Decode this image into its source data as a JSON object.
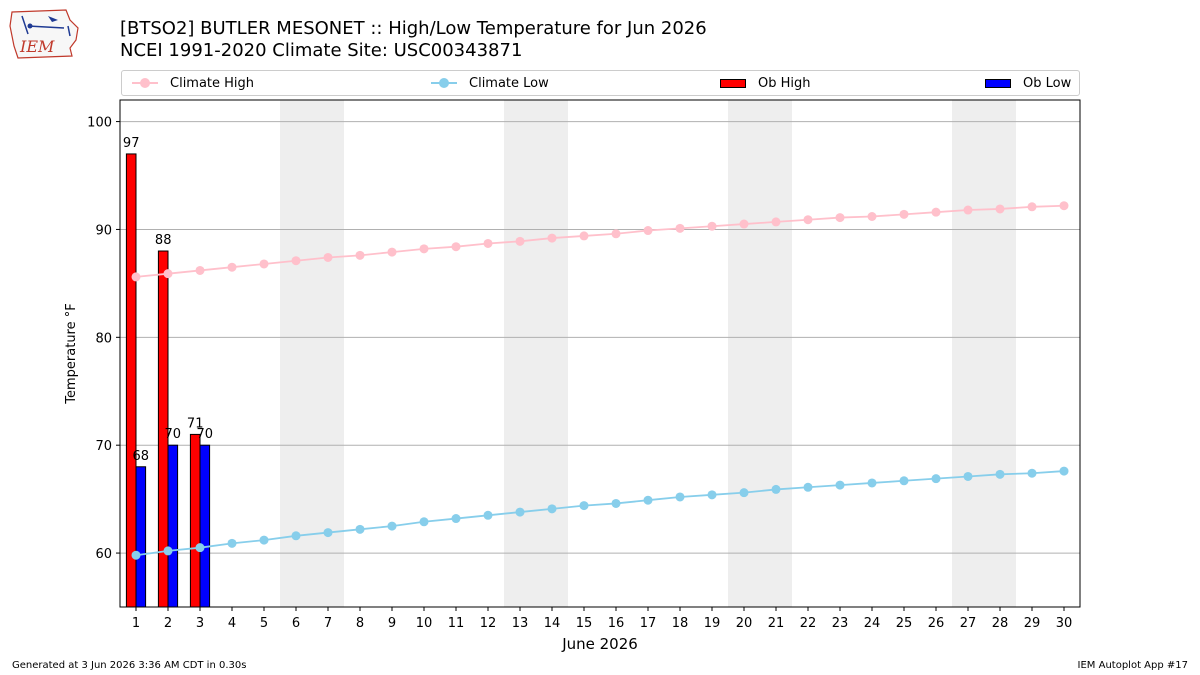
{
  "header": {
    "title": "[BTSO2] BUTLER MESONET :: High/Low Temperature for Jun 2026",
    "subtitle": "NCEI 1991-2020 Climate Site: USC00343871"
  },
  "logo": {
    "text": "IEM",
    "icon": "iem-logo-iowa-map"
  },
  "footer": {
    "generated": "Generated at 3 Jun 2026 3:36 AM CDT in 0.30s",
    "app": "IEM Autoplot App #17"
  },
  "colors": {
    "climate_high": "#ffc0cb",
    "climate_low": "#87ceeb",
    "ob_high": "#ff0000",
    "ob_low": "#0000ff",
    "weekend_shade": "#eeeeee",
    "grid": "#b0b0b0"
  },
  "chart_data": {
    "type": "bar",
    "xlabel": "June 2026",
    "ylabel": "Temperature °F",
    "xlim": [
      0.5,
      30.5
    ],
    "ylim": [
      55,
      102
    ],
    "x_ticks": [
      1,
      2,
      3,
      4,
      5,
      6,
      7,
      8,
      9,
      10,
      11,
      12,
      13,
      14,
      15,
      16,
      17,
      18,
      19,
      20,
      21,
      22,
      23,
      24,
      25,
      26,
      27,
      28,
      29,
      30
    ],
    "y_ticks": [
      60,
      70,
      80,
      90,
      100
    ],
    "grid": "horizontal",
    "legend_position": "top",
    "weekend_shaded_days": [
      [
        6,
        7
      ],
      [
        13,
        14
      ],
      [
        20,
        21
      ],
      [
        27,
        28
      ]
    ],
    "series": [
      {
        "name": "Climate High",
        "kind": "line",
        "x": [
          1,
          2,
          3,
          4,
          5,
          6,
          7,
          8,
          9,
          10,
          11,
          12,
          13,
          14,
          15,
          16,
          17,
          18,
          19,
          20,
          21,
          22,
          23,
          24,
          25,
          26,
          27,
          28,
          29,
          30
        ],
        "values": [
          85.6,
          85.9,
          86.2,
          86.5,
          86.8,
          87.1,
          87.4,
          87.6,
          87.9,
          88.2,
          88.4,
          88.7,
          88.9,
          89.2,
          89.4,
          89.6,
          89.9,
          90.1,
          90.3,
          90.5,
          90.7,
          90.9,
          91.1,
          91.2,
          91.4,
          91.6,
          91.8,
          91.9,
          92.1,
          92.2
        ]
      },
      {
        "name": "Climate Low",
        "kind": "line",
        "x": [
          1,
          2,
          3,
          4,
          5,
          6,
          7,
          8,
          9,
          10,
          11,
          12,
          13,
          14,
          15,
          16,
          17,
          18,
          19,
          20,
          21,
          22,
          23,
          24,
          25,
          26,
          27,
          28,
          29,
          30
        ],
        "values": [
          59.8,
          60.2,
          60.5,
          60.9,
          61.2,
          61.6,
          61.9,
          62.2,
          62.5,
          62.9,
          63.2,
          63.5,
          63.8,
          64.1,
          64.4,
          64.6,
          64.9,
          65.2,
          65.4,
          65.6,
          65.9,
          66.1,
          66.3,
          66.5,
          66.7,
          66.9,
          67.1,
          67.3,
          67.4,
          67.6
        ]
      },
      {
        "name": "Ob High",
        "kind": "bar",
        "x": [
          1,
          2,
          3
        ],
        "values": [
          97,
          88,
          71
        ],
        "labels": [
          "97",
          "88",
          "71"
        ]
      },
      {
        "name": "Ob Low",
        "kind": "bar",
        "x": [
          1,
          2,
          3
        ],
        "values": [
          68,
          70,
          70
        ],
        "labels": [
          "68",
          "70",
          "70"
        ]
      }
    ]
  }
}
